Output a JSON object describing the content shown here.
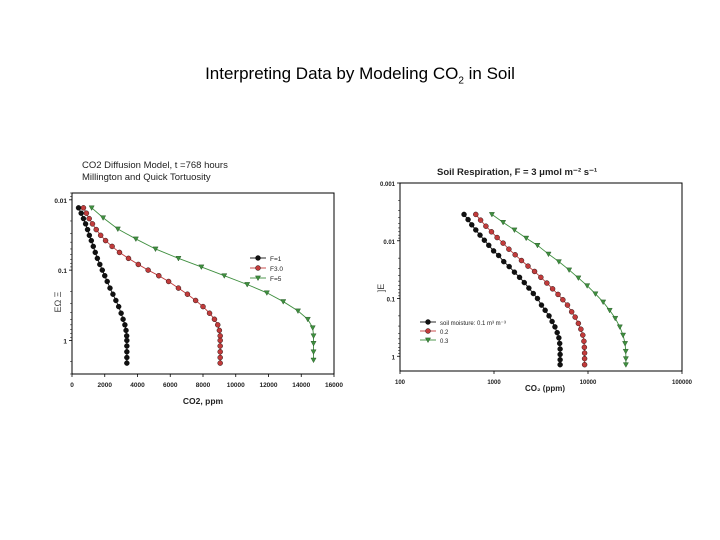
{
  "slide": {
    "title_main": "Interpreting Data by Modeling CO",
    "title_sub": "2",
    "title_tail": " in Soil"
  },
  "chart_data": [
    {
      "type": "line",
      "title_line1": "CO2 Diffusion Model, t =768 hours",
      "title_line2": "Millington and Quick Tortuosity",
      "xlabel": "CO2, ppm",
      "ylabel": "",
      "x_ticks": [
        "0",
        "2000",
        "4000",
        "6000",
        "8000",
        "10000",
        "12000",
        "14000",
        "16000"
      ],
      "y_ticks": [
        "0.01",
        "0.1",
        "1"
      ],
      "xlim": [
        0,
        16000
      ],
      "ylim": [
        0.008,
        3
      ],
      "y_scale": "log",
      "y_reversed": true,
      "y_axis_glyphs": "ΕΩ Ξ",
      "legend_position": "middle-right",
      "series": [
        {
          "name": "F=1",
          "color": "#111111",
          "marker": "circle",
          "points": [
            [
              400,
              0.013
            ],
            [
              560,
              0.0155
            ],
            [
              700,
              0.0185
            ],
            [
              830,
              0.022
            ],
            [
              950,
              0.0265
            ],
            [
              1060,
              0.032
            ],
            [
              1180,
              0.038
            ],
            [
              1300,
              0.046
            ],
            [
              1420,
              0.056
            ],
            [
              1550,
              0.068
            ],
            [
              1700,
              0.083
            ],
            [
              1850,
              0.1
            ],
            [
              2000,
              0.12
            ],
            [
              2150,
              0.145
            ],
            [
              2320,
              0.18
            ],
            [
              2500,
              0.22
            ],
            [
              2680,
              0.27
            ],
            [
              2850,
              0.33
            ],
            [
              3000,
              0.41
            ],
            [
              3120,
              0.5
            ],
            [
              3230,
              0.6
            ],
            [
              3300,
              0.72
            ],
            [
              3340,
              0.86
            ],
            [
              3350,
              1.0
            ],
            [
              3350,
              1.2
            ],
            [
              3350,
              1.45
            ],
            [
              3350,
              1.75
            ],
            [
              3350,
              2.1
            ]
          ]
        },
        {
          "name": "F3.0",
          "color": "#c23b3b",
          "marker": "circle",
          "points": [
            [
              700,
              0.013
            ],
            [
              880,
              0.0155
            ],
            [
              1050,
              0.0185
            ],
            [
              1250,
              0.022
            ],
            [
              1480,
              0.0265
            ],
            [
              1750,
              0.032
            ],
            [
              2050,
              0.038
            ],
            [
              2450,
              0.046
            ],
            [
              2900,
              0.056
            ],
            [
              3450,
              0.068
            ],
            [
              4050,
              0.083
            ],
            [
              4650,
              0.1
            ],
            [
              5300,
              0.12
            ],
            [
              5900,
              0.145
            ],
            [
              6500,
              0.18
            ],
            [
              7050,
              0.22
            ],
            [
              7550,
              0.27
            ],
            [
              8000,
              0.33
            ],
            [
              8400,
              0.41
            ],
            [
              8700,
              0.5
            ],
            [
              8900,
              0.6
            ],
            [
              9000,
              0.72
            ],
            [
              9050,
              0.86
            ],
            [
              9050,
              1.0
            ],
            [
              9050,
              1.2
            ],
            [
              9050,
              1.45
            ],
            [
              9050,
              1.75
            ],
            [
              9050,
              2.1
            ]
          ]
        },
        {
          "name": "F=5",
          "color": "#3f8f3f",
          "marker": "triangle-down",
          "points": [
            [
              1200,
              0.013
            ],
            [
              1900,
              0.018
            ],
            [
              2800,
              0.026
            ],
            [
              3900,
              0.036
            ],
            [
              5100,
              0.05
            ],
            [
              6500,
              0.068
            ],
            [
              7900,
              0.09
            ],
            [
              9300,
              0.12
            ],
            [
              10700,
              0.16
            ],
            [
              11900,
              0.21
            ],
            [
              12900,
              0.28
            ],
            [
              13800,
              0.38
            ],
            [
              14400,
              0.5
            ],
            [
              14700,
              0.66
            ],
            [
              14750,
              0.86
            ],
            [
              14750,
              1.1
            ],
            [
              14750,
              1.45
            ],
            [
              14750,
              1.9
            ]
          ]
        }
      ]
    },
    {
      "type": "line",
      "title": "Soil Respiration, F = 3 μmol m⁻² s⁻¹",
      "xlabel": "CO₂ (ppm)",
      "ylabel": "",
      "x_ticks": [
        "100",
        "1000",
        "10000",
        "100000"
      ],
      "y_ticks": [
        "0.001",
        "0.01",
        "0.1",
        "1"
      ],
      "xlim": [
        100,
        100000
      ],
      "ylim": [
        0.001,
        1.8
      ],
      "x_scale": "log",
      "y_scale": "log",
      "y_reversed": true,
      "y_axis_glyphs": "]E",
      "legend_position": "bottom-left",
      "legend_title": "soil moisture: 0.1 m³ m⁻³",
      "series": [
        {
          "name": "0.1",
          "color": "#111111",
          "marker": "circle",
          "points": [
            [
              480,
              0.0035
            ],
            [
              530,
              0.0043
            ],
            [
              580,
              0.0053
            ],
            [
              640,
              0.0065
            ],
            [
              710,
              0.008
            ],
            [
              790,
              0.0098
            ],
            [
              880,
              0.012
            ],
            [
              990,
              0.015
            ],
            [
              1120,
              0.018
            ],
            [
              1270,
              0.023
            ],
            [
              1450,
              0.028
            ],
            [
              1650,
              0.035
            ],
            [
              1870,
              0.043
            ],
            [
              2100,
              0.053
            ],
            [
              2350,
              0.066
            ],
            [
              2620,
              0.082
            ],
            [
              2900,
              0.1
            ],
            [
              3200,
              0.13
            ],
            [
              3500,
              0.16
            ],
            [
              3850,
              0.2
            ],
            [
              4150,
              0.25
            ],
            [
              4450,
              0.31
            ],
            [
              4700,
              0.39
            ],
            [
              4900,
              0.48
            ],
            [
              5000,
              0.6
            ],
            [
              5050,
              0.75
            ],
            [
              5050,
              0.93
            ],
            [
              5050,
              1.15
            ],
            [
              5050,
              1.4
            ]
          ]
        },
        {
          "name": "0.2",
          "color": "#c23b3b",
          "marker": "circle",
          "points": [
            [
              640,
              0.0035
            ],
            [
              720,
              0.0044
            ],
            [
              820,
              0.0056
            ],
            [
              940,
              0.007
            ],
            [
              1080,
              0.0088
            ],
            [
              1250,
              0.011
            ],
            [
              1440,
              0.014
            ],
            [
              1680,
              0.0175
            ],
            [
              1960,
              0.022
            ],
            [
              2300,
              0.0275
            ],
            [
              2700,
              0.034
            ],
            [
              3150,
              0.043
            ],
            [
              3650,
              0.054
            ],
            [
              4200,
              0.068
            ],
            [
              4800,
              0.085
            ],
            [
              5400,
              0.105
            ],
            [
              6050,
              0.13
            ],
            [
              6700,
              0.17
            ],
            [
              7300,
              0.21
            ],
            [
              7900,
              0.27
            ],
            [
              8400,
              0.34
            ],
            [
              8800,
              0.43
            ],
            [
              9050,
              0.55
            ],
            [
              9150,
              0.7
            ],
            [
              9200,
              0.88
            ],
            [
              9200,
              1.1
            ],
            [
              9200,
              1.4
            ]
          ]
        },
        {
          "name": "0.3",
          "color": "#3f8f3f",
          "marker": "triangle-down",
          "points": [
            [
              950,
              0.0035
            ],
            [
              1250,
              0.0048
            ],
            [
              1650,
              0.0065
            ],
            [
              2200,
              0.009
            ],
            [
              2900,
              0.012
            ],
            [
              3800,
              0.017
            ],
            [
              4900,
              0.023
            ],
            [
              6300,
              0.032
            ],
            [
              7900,
              0.044
            ],
            [
              9800,
              0.06
            ],
            [
              12000,
              0.083
            ],
            [
              14500,
              0.115
            ],
            [
              17000,
              0.16
            ],
            [
              19500,
              0.22
            ],
            [
              21800,
              0.31
            ],
            [
              23600,
              0.43
            ],
            [
              24800,
              0.6
            ],
            [
              25200,
              0.82
            ],
            [
              25300,
              1.1
            ],
            [
              25300,
              1.4
            ]
          ]
        }
      ]
    }
  ]
}
